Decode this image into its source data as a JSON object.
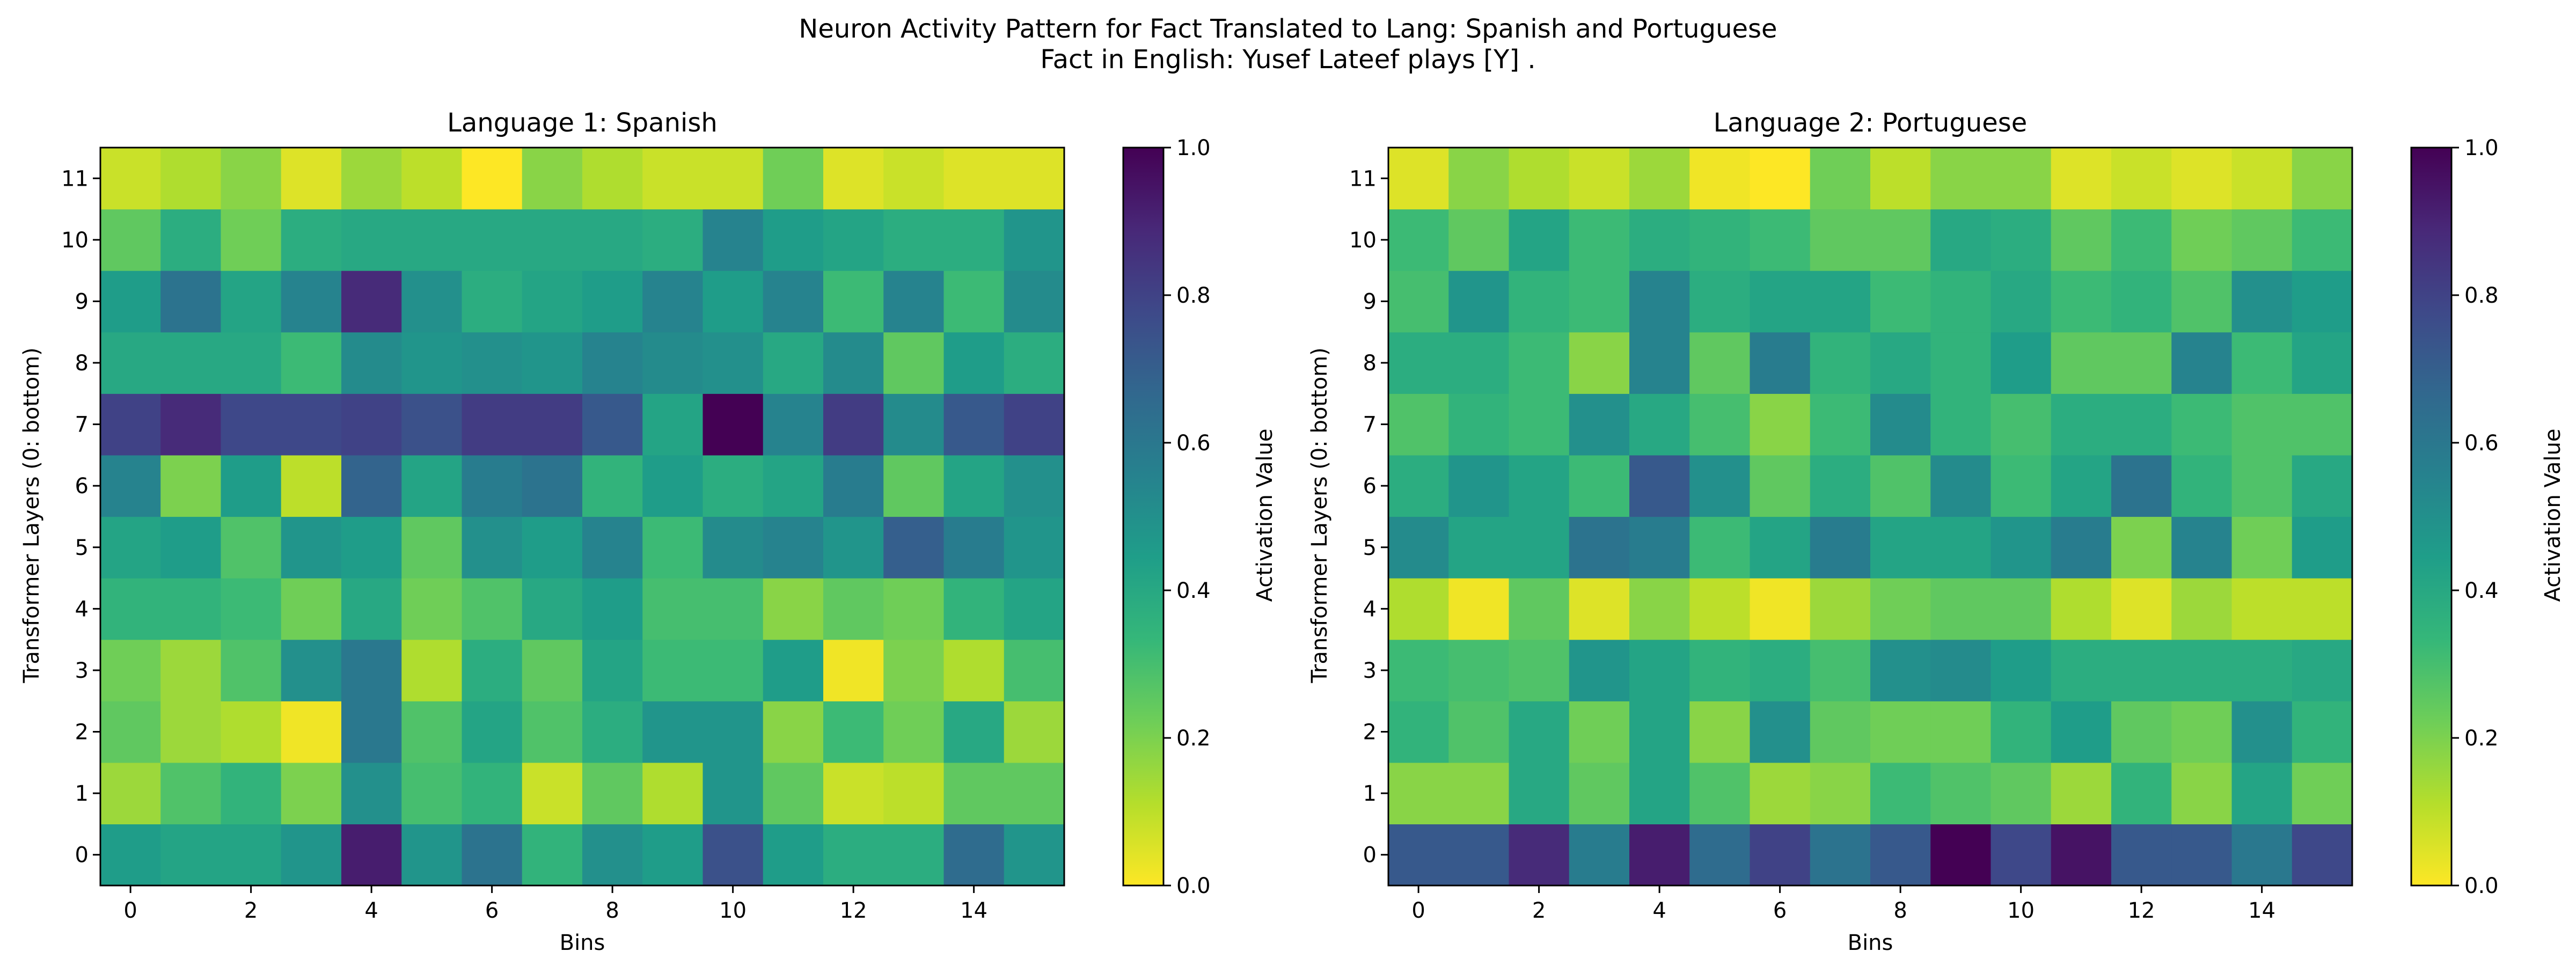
{
  "figure": {
    "title_line1": "Neuron Activity Pattern for Fact Translated to Lang: Spanish and Portuguese",
    "title_line2": "Fact in English: Yusef Lateef plays [Y] ."
  },
  "colormap": {
    "name": "viridis_r",
    "stops": [
      "#fde725",
      "#b5de2b",
      "#6ece58",
      "#35b779",
      "#1f9e89",
      "#26828e",
      "#31688e",
      "#3e4989",
      "#482878",
      "#440154"
    ]
  },
  "chart_data": [
    {
      "type": "heatmap",
      "title": "Language 1: Spanish",
      "xlabel": "Bins",
      "ylabel": "Transformer Layers (0: bottom)",
      "colorbar_label": "Activation Value",
      "x_ticks": [
        "0",
        "2",
        "4",
        "6",
        "8",
        "10",
        "12",
        "14"
      ],
      "y_ticks": [
        "0",
        "1",
        "2",
        "3",
        "4",
        "5",
        "6",
        "7",
        "8",
        "9",
        "10",
        "11"
      ],
      "colorbar_ticks": [
        "0.0",
        "0.2",
        "0.4",
        "0.6",
        "0.8",
        "1.0"
      ],
      "vmin": 0.0,
      "vmax": 1.0,
      "x_bins": [
        0,
        1,
        2,
        3,
        4,
        5,
        6,
        7,
        8,
        9,
        10,
        11,
        12,
        13,
        14,
        15
      ],
      "layers": [
        0,
        1,
        2,
        3,
        4,
        5,
        6,
        7,
        8,
        9,
        10,
        11
      ],
      "values": [
        [
          0.45,
          0.42,
          0.42,
          0.48,
          0.92,
          0.48,
          0.62,
          0.35,
          0.5,
          0.45,
          0.75,
          0.45,
          0.38,
          0.38,
          0.65,
          0.48
        ],
        [
          0.15,
          0.28,
          0.35,
          0.2,
          0.5,
          0.3,
          0.35,
          0.08,
          0.25,
          0.12,
          0.48,
          0.25,
          0.08,
          0.1,
          0.25,
          0.25
        ],
        [
          0.25,
          0.15,
          0.12,
          0.02,
          0.6,
          0.28,
          0.42,
          0.28,
          0.38,
          0.48,
          0.48,
          0.18,
          0.32,
          0.22,
          0.4,
          0.15
        ],
        [
          0.22,
          0.15,
          0.28,
          0.5,
          0.6,
          0.12,
          0.38,
          0.25,
          0.42,
          0.32,
          0.32,
          0.45,
          0.02,
          0.2,
          0.12,
          0.3
        ],
        [
          0.35,
          0.35,
          0.32,
          0.22,
          0.4,
          0.22,
          0.28,
          0.4,
          0.45,
          0.3,
          0.3,
          0.18,
          0.25,
          0.22,
          0.35,
          0.42
        ],
        [
          0.42,
          0.45,
          0.28,
          0.48,
          0.45,
          0.25,
          0.5,
          0.45,
          0.55,
          0.32,
          0.52,
          0.55,
          0.48,
          0.7,
          0.58,
          0.48
        ],
        [
          0.55,
          0.2,
          0.45,
          0.1,
          0.68,
          0.42,
          0.58,
          0.62,
          0.35,
          0.45,
          0.38,
          0.42,
          0.58,
          0.25,
          0.42,
          0.5
        ],
        [
          0.8,
          0.88,
          0.78,
          0.78,
          0.8,
          0.75,
          0.82,
          0.82,
          0.72,
          0.42,
          1.0,
          0.55,
          0.82,
          0.52,
          0.72,
          0.8
        ],
        [
          0.4,
          0.4,
          0.4,
          0.32,
          0.52,
          0.48,
          0.5,
          0.48,
          0.55,
          0.52,
          0.5,
          0.4,
          0.52,
          0.25,
          0.45,
          0.38
        ],
        [
          0.45,
          0.62,
          0.42,
          0.55,
          0.88,
          0.5,
          0.38,
          0.42,
          0.45,
          0.55,
          0.45,
          0.55,
          0.32,
          0.55,
          0.32,
          0.52
        ],
        [
          0.25,
          0.38,
          0.22,
          0.38,
          0.4,
          0.4,
          0.4,
          0.4,
          0.4,
          0.38,
          0.55,
          0.45,
          0.42,
          0.38,
          0.38,
          0.48
        ],
        [
          0.08,
          0.12,
          0.18,
          0.05,
          0.15,
          0.1,
          0.0,
          0.18,
          0.12,
          0.08,
          0.08,
          0.22,
          0.05,
          0.08,
          0.05,
          0.05
        ]
      ]
    },
    {
      "type": "heatmap",
      "title": "Language 2: Portuguese",
      "xlabel": "Bins",
      "ylabel": "Transformer Layers (0: bottom)",
      "colorbar_label": "Activation Value",
      "x_ticks": [
        "0",
        "2",
        "4",
        "6",
        "8",
        "10",
        "12",
        "14"
      ],
      "y_ticks": [
        "0",
        "1",
        "2",
        "3",
        "4",
        "5",
        "6",
        "7",
        "8",
        "9",
        "10",
        "11"
      ],
      "colorbar_ticks": [
        "0.0",
        "0.2",
        "0.4",
        "0.6",
        "0.8",
        "1.0"
      ],
      "vmin": 0.0,
      "vmax": 1.0,
      "x_bins": [
        0,
        1,
        2,
        3,
        4,
        5,
        6,
        7,
        8,
        9,
        10,
        11,
        12,
        13,
        14,
        15
      ],
      "layers": [
        0,
        1,
        2,
        3,
        4,
        5,
        6,
        7,
        8,
        9,
        10,
        11
      ],
      "values": [
        [
          0.72,
          0.72,
          0.88,
          0.58,
          0.92,
          0.65,
          0.8,
          0.62,
          0.72,
          1.0,
          0.78,
          0.95,
          0.72,
          0.72,
          0.6,
          0.78
        ],
        [
          0.18,
          0.18,
          0.4,
          0.25,
          0.42,
          0.28,
          0.15,
          0.18,
          0.32,
          0.28,
          0.25,
          0.15,
          0.35,
          0.18,
          0.42,
          0.22
        ],
        [
          0.35,
          0.28,
          0.4,
          0.22,
          0.42,
          0.18,
          0.5,
          0.25,
          0.22,
          0.22,
          0.35,
          0.45,
          0.25,
          0.22,
          0.5,
          0.35
        ],
        [
          0.32,
          0.3,
          0.28,
          0.48,
          0.42,
          0.35,
          0.38,
          0.3,
          0.5,
          0.52,
          0.45,
          0.38,
          0.38,
          0.38,
          0.38,
          0.4
        ],
        [
          0.12,
          0.02,
          0.25,
          0.05,
          0.18,
          0.1,
          0.02,
          0.15,
          0.22,
          0.25,
          0.25,
          0.12,
          0.05,
          0.15,
          0.1,
          0.1
        ],
        [
          0.52,
          0.42,
          0.42,
          0.62,
          0.58,
          0.32,
          0.42,
          0.58,
          0.42,
          0.42,
          0.48,
          0.58,
          0.2,
          0.55,
          0.22,
          0.45
        ],
        [
          0.38,
          0.48,
          0.42,
          0.32,
          0.72,
          0.5,
          0.25,
          0.38,
          0.28,
          0.52,
          0.32,
          0.42,
          0.62,
          0.35,
          0.28,
          0.4
        ],
        [
          0.28,
          0.35,
          0.32,
          0.5,
          0.4,
          0.3,
          0.18,
          0.32,
          0.52,
          0.35,
          0.3,
          0.38,
          0.38,
          0.32,
          0.28,
          0.28
        ],
        [
          0.38,
          0.38,
          0.32,
          0.18,
          0.55,
          0.25,
          0.58,
          0.35,
          0.4,
          0.35,
          0.45,
          0.25,
          0.25,
          0.55,
          0.32,
          0.42
        ],
        [
          0.3,
          0.48,
          0.35,
          0.32,
          0.55,
          0.38,
          0.42,
          0.42,
          0.32,
          0.35,
          0.4,
          0.32,
          0.35,
          0.28,
          0.5,
          0.45
        ],
        [
          0.32,
          0.25,
          0.42,
          0.32,
          0.38,
          0.35,
          0.32,
          0.25,
          0.25,
          0.4,
          0.38,
          0.25,
          0.32,
          0.22,
          0.25,
          0.32
        ],
        [
          0.05,
          0.18,
          0.12,
          0.08,
          0.15,
          0.02,
          0.0,
          0.22,
          0.1,
          0.18,
          0.18,
          0.05,
          0.08,
          0.05,
          0.08,
          0.18
        ]
      ]
    }
  ]
}
